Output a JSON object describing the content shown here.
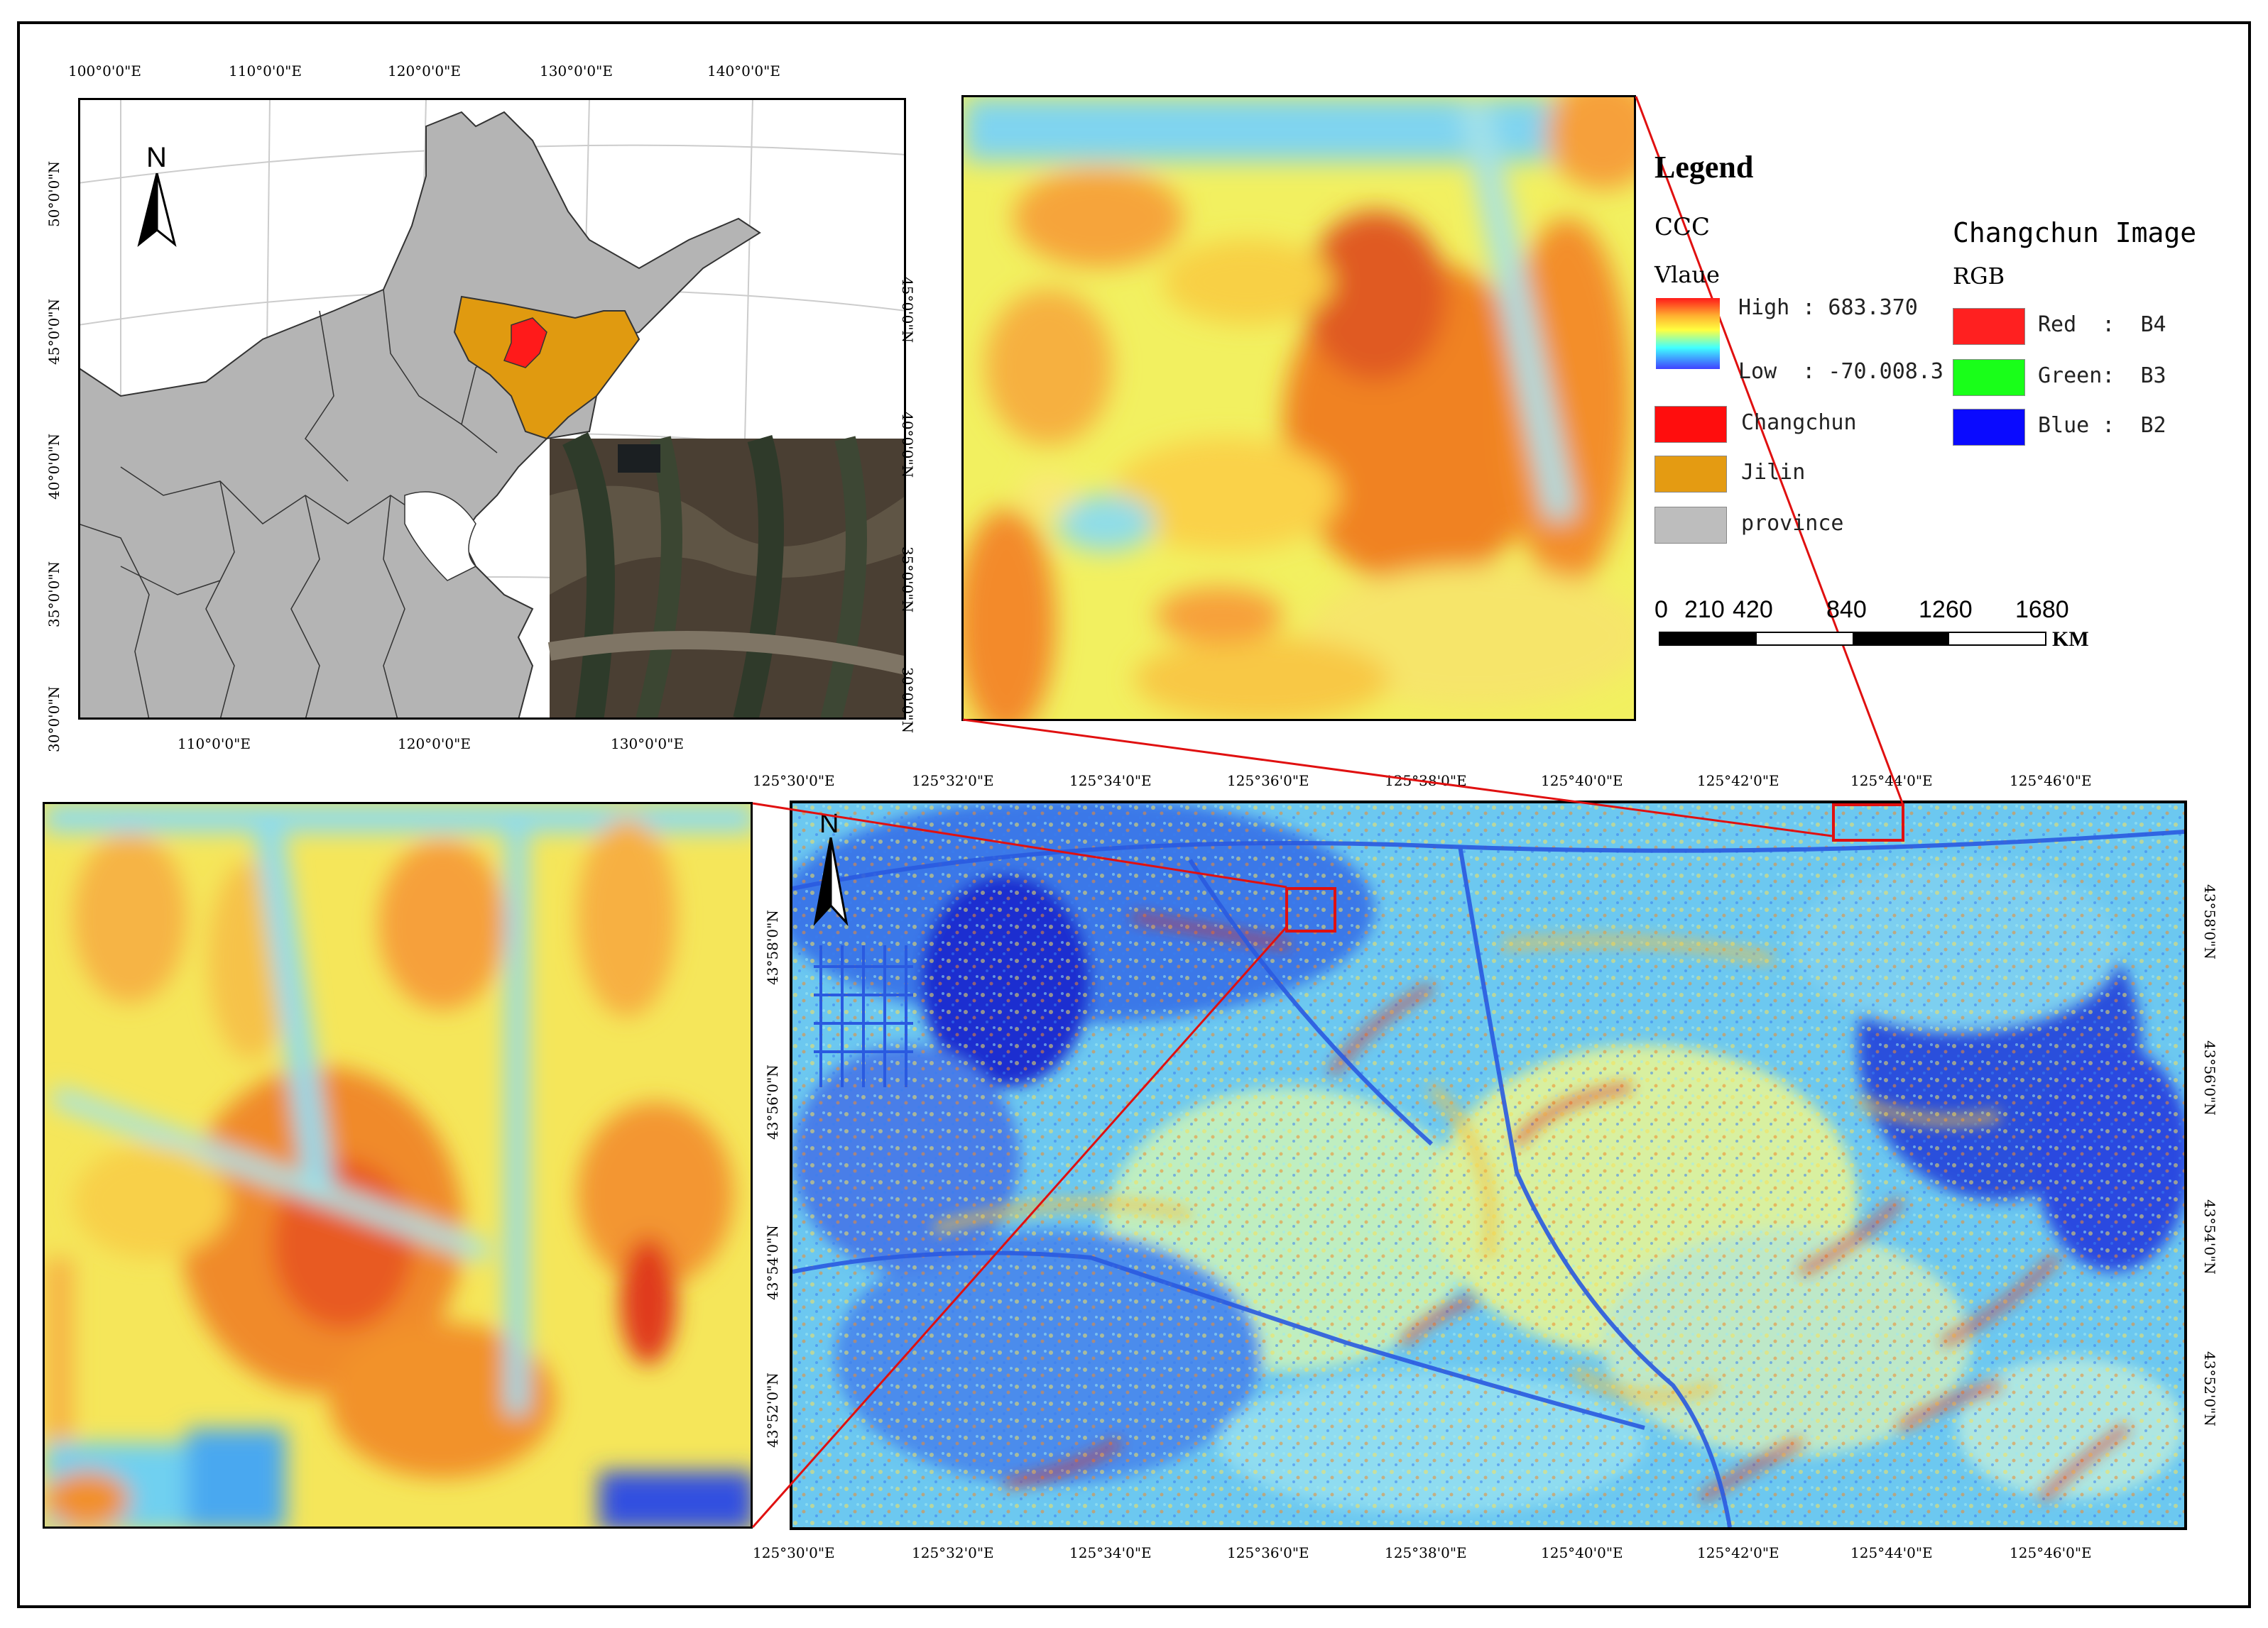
{
  "overview_map": {
    "top_lon_labels": [
      "100°0'0\"E",
      "110°0'0\"E",
      "120°0'0\"E",
      "130°0'0\"E",
      "140°0'0\"E"
    ],
    "bottom_lon_labels": [
      "110°0'0\"E",
      "120°0'0\"E",
      "130°0'0\"E"
    ],
    "left_lat_labels": [
      "50°0'0\"N",
      "45°0'0\"N",
      "40°0'0\"N",
      "35°0'0\"N",
      "30°0'0\"N"
    ],
    "right_lat_labels": [
      "45°0'0\"N",
      "40°0'0\"N",
      "35°0'0\"N",
      "30°0'0\"N"
    ],
    "north_label": "N",
    "colors": {
      "province": "#b4b4b4",
      "jilin": "#e09a10",
      "changchun": "#ff1a1a"
    }
  },
  "legend": {
    "title": "Legend",
    "ccc_label": "CCC",
    "value_label": "Vlaue",
    "high_label": "High : 683.370",
    "low_label": "Low  : -70.008.3",
    "changchun_label": "Changchun",
    "jilin_label": "Jilin",
    "province_label": "province",
    "image_title": "Changchun Image",
    "rgb_label": "RGB",
    "red_label": "Red  :  B4",
    "green_label": "Green:  B3",
    "blue_label": "Blue :  B2",
    "colors": {
      "red": "#ff2020",
      "green": "#19ff19",
      "blue": "#0a0aff",
      "changchun": "#ff0d0d",
      "jilin": "#e49b12",
      "province": "#bdbdbd"
    }
  },
  "scale_bar": {
    "labels": [
      "0",
      "210",
      "420",
      "840",
      "1260",
      "1680"
    ],
    "unit": "KM"
  },
  "main_map": {
    "top_lon_labels": [
      "125°30'0\"E",
      "125°32'0\"E",
      "125°34'0\"E",
      "125°36'0\"E",
      "125°38'0\"E",
      "125°40'0\"E",
      "125°42'0\"E",
      "125°44'0\"E",
      "125°46'0\"E"
    ],
    "bottom_lon_labels": [
      "125°30'0\"E",
      "125°32'0\"E",
      "125°34'0\"E",
      "125°36'0\"E",
      "125°38'0\"E",
      "125°40'0\"E",
      "125°42'0\"E",
      "125°44'0\"E",
      "125°46'0\"E"
    ],
    "lat_labels": [
      "43°58'0\"N",
      "43°56'0\"N",
      "43°54'0\"N",
      "43°52'0\"N"
    ],
    "north_label": "N"
  }
}
